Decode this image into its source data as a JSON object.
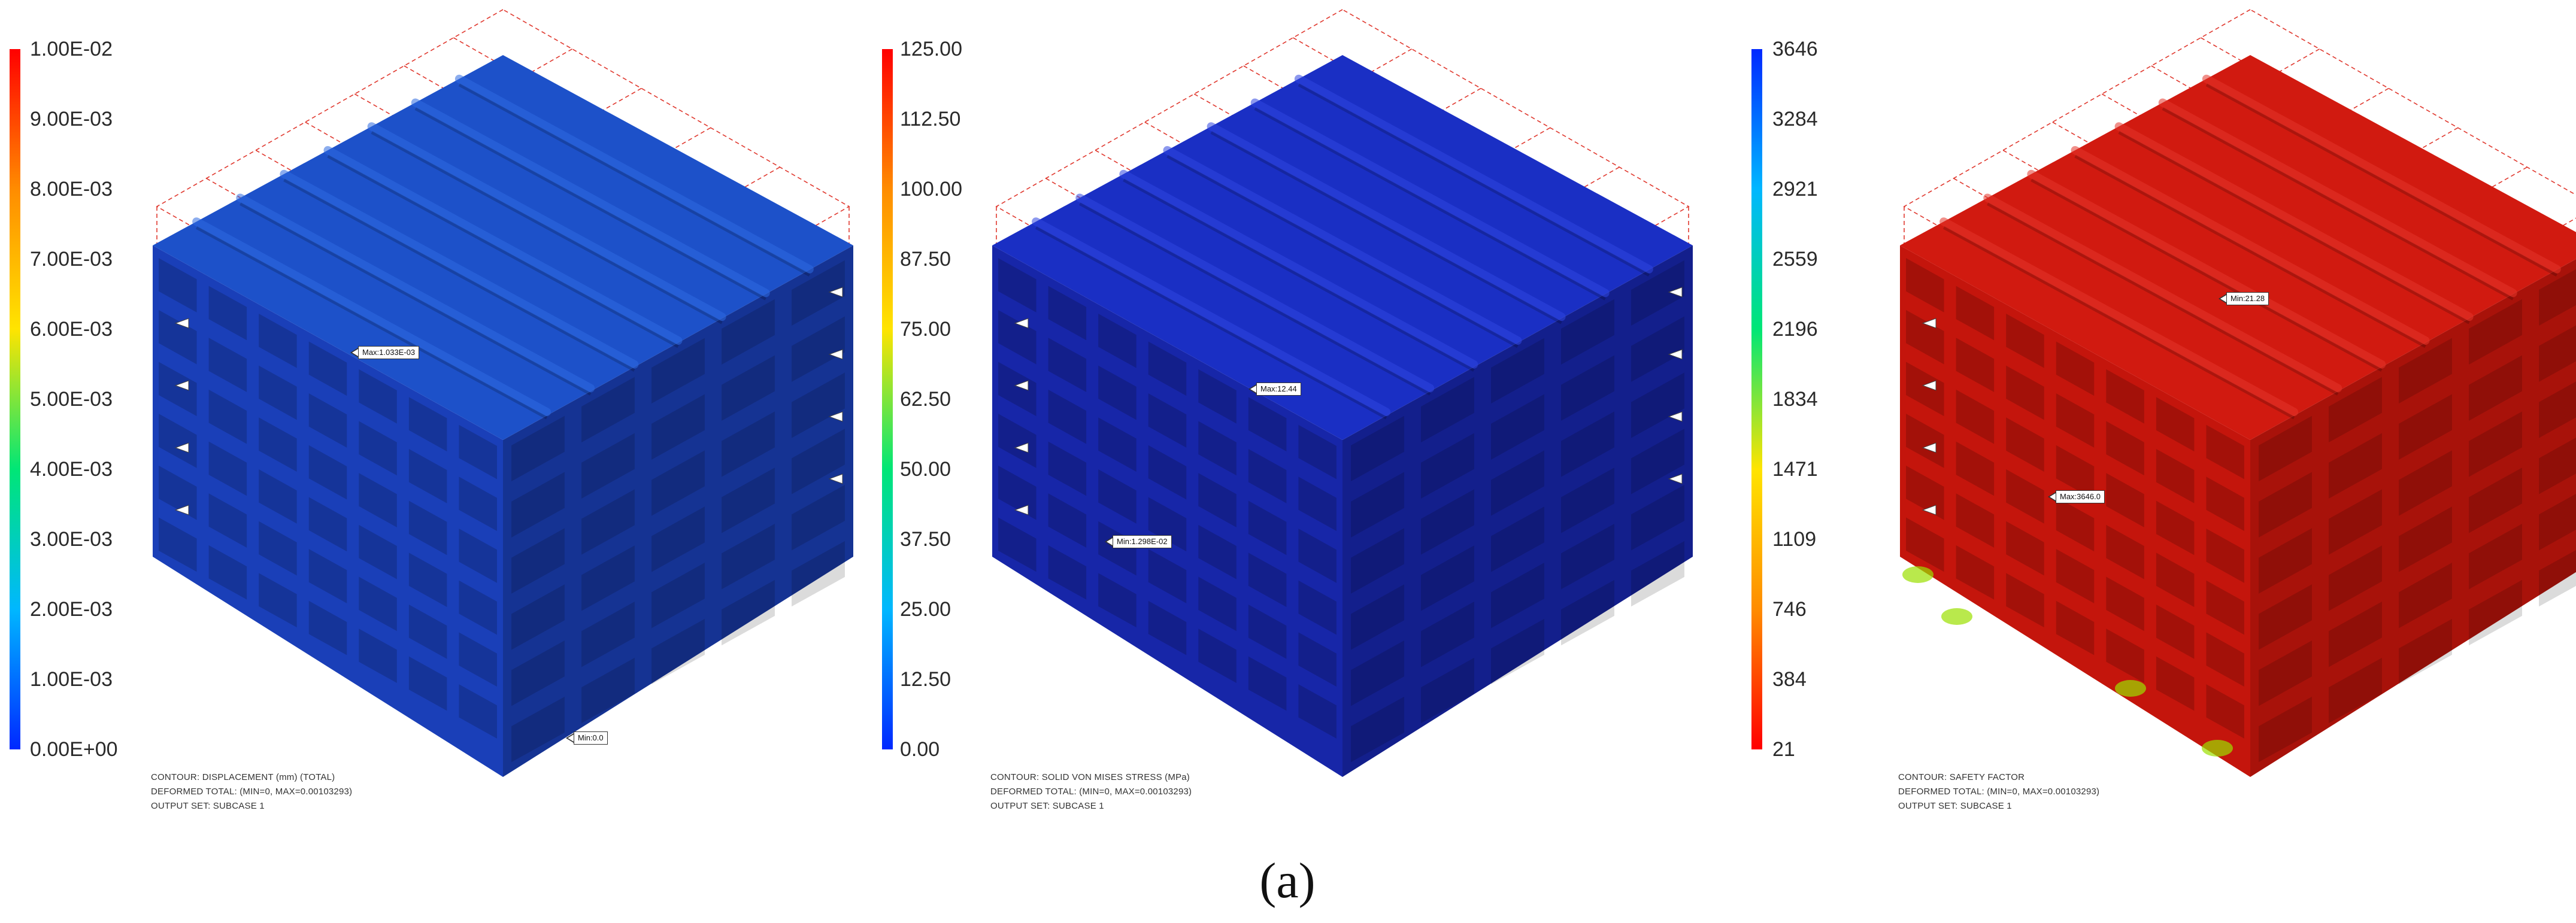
{
  "caption": "(a)",
  "panels": [
    {
      "id": "displacement",
      "legend_values": [
        "1.00E-02",
        "9.00E-03",
        "8.00E-03",
        "7.00E-03",
        "6.00E-03",
        "5.00E-03",
        "4.00E-03",
        "3.00E-03",
        "2.00E-03",
        "1.00E-03",
        "0.00E+00"
      ],
      "legend_colors": [
        "#ff0000",
        "#ff8c00",
        "#ffe400",
        "#00e676",
        "#00b7ff",
        "#0028ff"
      ],
      "max_tag": "Max:1.033E-03",
      "min_tag": "Min:0.0",
      "info": [
        "CONTOUR: DISPLACEMENT (mm) (TOTAL)",
        "DEFORMED TOTAL: (MIN=0, MAX=0.00103293)",
        "OUTPUT SET: SUBCASE 1"
      ],
      "body_colors": {
        "top": "#1d51c9",
        "left": "#1a3fb8",
        "right": "#153393",
        "accent": "#2e6ae0"
      }
    },
    {
      "id": "von-mises-stress",
      "legend_values": [
        "125.00",
        "112.50",
        "100.00",
        "87.50",
        "75.00",
        "62.50",
        "50.00",
        "37.50",
        "25.00",
        "12.50",
        "0.00"
      ],
      "legend_colors": [
        "#ff0000",
        "#ff8c00",
        "#ffe400",
        "#00e676",
        "#00b7ff",
        "#0028ff"
      ],
      "max_tag": "Max:12.44",
      "min_tag": "Min:1.298E-02",
      "info": [
        "CONTOUR: SOLID VON MISES STRESS (MPa)",
        "DEFORMED TOTAL: (MIN=0, MAX=0.00103293)",
        "OUTPUT SET: SUBCASE 1"
      ],
      "body_colors": {
        "top": "#1a2fc4",
        "left": "#1726a8",
        "right": "#131f8c",
        "accent": "#2f45e0"
      }
    },
    {
      "id": "safety-factor",
      "legend_values": [
        "3646",
        "3284",
        "2921",
        "2559",
        "2196",
        "1834",
        "1471",
        "1109",
        "746",
        "384",
        "21"
      ],
      "legend_colors": [
        "#0028ff",
        "#00b7ff",
        "#00e676",
        "#ffe400",
        "#ff8c00",
        "#ff0000"
      ],
      "max_tag": "Max:3646.0",
      "min_tag": "Min:21.28",
      "info": [
        "CONTOUR: SAFETY FACTOR",
        "DEFORMED TOTAL: (MIN=0, MAX=0.00103293)",
        "OUTPUT SET: SUBCASE 1"
      ],
      "body_colors": {
        "top": "#d11a10",
        "left": "#c4150c",
        "right": "#a8120a",
        "accent": "#e4352a"
      }
    }
  ]
}
